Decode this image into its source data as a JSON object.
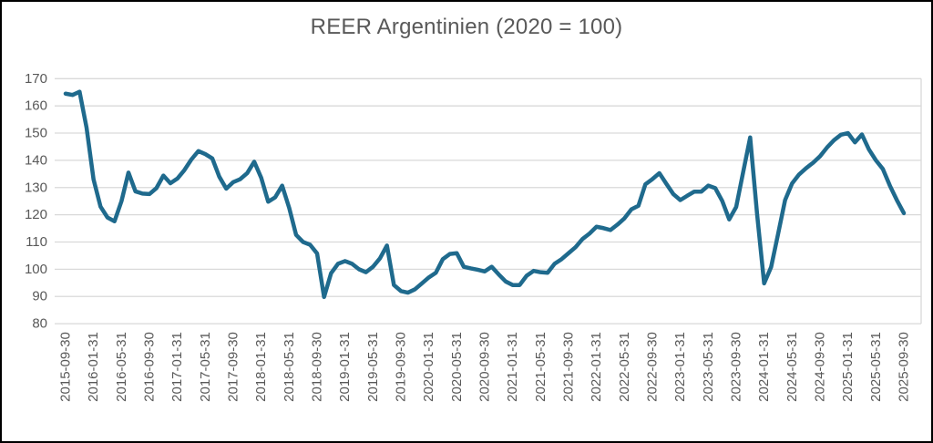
{
  "title": "REER Argentinien (2020 = 100)",
  "colors": {
    "line": "#1f6a8d",
    "grid": "#d9d9d9",
    "axis_text": "#595959",
    "title_text": "#595959",
    "background": "#ffffff",
    "frame": "#000000"
  },
  "chart_data": {
    "type": "line",
    "title": "REER Argentinien (2020 = 100)",
    "series_name": "REER Argentinien",
    "ylim": [
      80,
      170
    ],
    "y_ticks": [
      80,
      90,
      100,
      110,
      120,
      130,
      140,
      150,
      160,
      170
    ],
    "grid": "horizontal",
    "legend": "none",
    "x_tick_labels": [
      "2015-09-30",
      "2016-01-31",
      "2016-05-31",
      "2016-09-30",
      "2017-01-31",
      "2017-05-31",
      "2017-09-30",
      "2018-01-31",
      "2018-05-31",
      "2018-09-30",
      "2019-01-31",
      "2019-05-31",
      "2019-09-30",
      "2020-01-31",
      "2020-05-31",
      "2020-09-30",
      "2021-01-31",
      "2021-05-31",
      "2021-09-30",
      "2022-01-31",
      "2022-05-31",
      "2022-09-30",
      "2023-01-31",
      "2023-05-31",
      "2023-09-30",
      "2024-01-31",
      "2024-05-31",
      "2024-09-30",
      "2025-01-31",
      "2025-05-31",
      "2025-09-30"
    ],
    "x": [
      "2015-09-30",
      "2015-10-31",
      "2015-11-30",
      "2015-12-31",
      "2016-01-31",
      "2016-02-29",
      "2016-03-31",
      "2016-04-30",
      "2016-05-31",
      "2016-06-30",
      "2016-07-31",
      "2016-08-31",
      "2016-09-30",
      "2016-10-31",
      "2016-11-30",
      "2016-12-31",
      "2017-01-31",
      "2017-02-28",
      "2017-03-31",
      "2017-04-30",
      "2017-05-31",
      "2017-06-30",
      "2017-07-31",
      "2017-08-31",
      "2017-09-30",
      "2017-10-31",
      "2017-11-30",
      "2017-12-31",
      "2018-01-31",
      "2018-02-28",
      "2018-03-31",
      "2018-04-30",
      "2018-05-31",
      "2018-06-30",
      "2018-07-31",
      "2018-08-31",
      "2018-09-30",
      "2018-10-31",
      "2018-11-30",
      "2018-12-31",
      "2019-01-31",
      "2019-02-28",
      "2019-03-31",
      "2019-04-30",
      "2019-05-31",
      "2019-06-30",
      "2019-07-31",
      "2019-08-31",
      "2019-09-30",
      "2019-10-31",
      "2019-11-30",
      "2019-12-31",
      "2020-01-31",
      "2020-02-29",
      "2020-03-31",
      "2020-04-30",
      "2020-05-31",
      "2020-06-30",
      "2020-07-31",
      "2020-08-31",
      "2020-09-30",
      "2020-10-31",
      "2020-11-30",
      "2020-12-31",
      "2021-01-31",
      "2021-02-28",
      "2021-03-31",
      "2021-04-30",
      "2021-05-31",
      "2021-06-30",
      "2021-07-31",
      "2021-08-31",
      "2021-09-30",
      "2021-10-31",
      "2021-11-30",
      "2021-12-31",
      "2022-01-31",
      "2022-02-28",
      "2022-03-31",
      "2022-04-30",
      "2022-05-31",
      "2022-06-30",
      "2022-07-31",
      "2022-08-31",
      "2022-09-30",
      "2022-10-31",
      "2022-11-30",
      "2022-12-31",
      "2023-01-31",
      "2023-02-28",
      "2023-03-31",
      "2023-04-30",
      "2023-05-31",
      "2023-06-30",
      "2023-07-31",
      "2023-08-31",
      "2023-09-30",
      "2023-10-31",
      "2023-11-30",
      "2023-12-31",
      "2024-01-31",
      "2024-02-29",
      "2024-03-31",
      "2024-04-30",
      "2024-05-31",
      "2024-06-30",
      "2024-07-31",
      "2024-08-31",
      "2024-09-30",
      "2024-10-31",
      "2024-11-30",
      "2024-12-31",
      "2025-01-31",
      "2025-02-28",
      "2025-03-31",
      "2025-04-30",
      "2025-05-31",
      "2025-06-30",
      "2025-07-31",
      "2025-08-31",
      "2025-09-30"
    ],
    "values": [
      164.5,
      164.0,
      165.2,
      152.0,
      133.0,
      123.0,
      119.0,
      117.6,
      125.0,
      135.5,
      128.6,
      127.8,
      127.6,
      129.8,
      134.4,
      131.6,
      133.3,
      136.4,
      140.3,
      143.4,
      142.3,
      140.7,
      134.0,
      129.6,
      132.0,
      133.1,
      135.3,
      139.5,
      133.6,
      124.8,
      126.4,
      130.7,
      122.6,
      112.6,
      110.0,
      109.0,
      105.8,
      89.8,
      98.5,
      102.0,
      103.0,
      102.0,
      100.0,
      98.9,
      100.9,
      104.0,
      108.7,
      94.2,
      92.0,
      91.4,
      92.6,
      94.8,
      97.0,
      98.7,
      103.7,
      105.6,
      105.9,
      100.9,
      100.3,
      99.8,
      99.2,
      100.9,
      98.1,
      95.5,
      94.2,
      94.2,
      97.6,
      99.4,
      98.9,
      98.7,
      102.0,
      103.7,
      105.9,
      108.1,
      111.1,
      113.1,
      115.6,
      115.1,
      114.4,
      116.4,
      118.7,
      122.0,
      123.3,
      131.2,
      133.1,
      135.3,
      131.4,
      127.6,
      125.4,
      127.0,
      128.5,
      128.5,
      130.7,
      129.8,
      125.1,
      118.3,
      122.9,
      135.7,
      148.4,
      120.0,
      94.8,
      100.8,
      113.0,
      125.4,
      131.5,
      134.8,
      137.1,
      139.1,
      141.5,
      144.7,
      147.4,
      149.4,
      150.0,
      146.6,
      149.5,
      144.0,
      140.0,
      136.8,
      130.7,
      125.4,
      120.6
    ]
  }
}
